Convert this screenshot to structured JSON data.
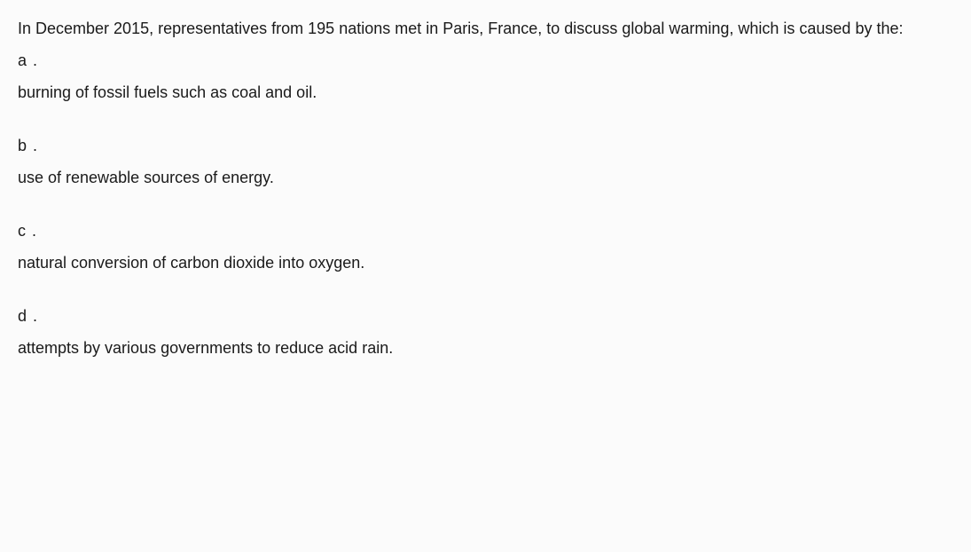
{
  "question": {
    "stem": "In December 2015, representatives from 195 nations met in Paris, France, to discuss global warming, which is caused by the:",
    "options": [
      {
        "label": "a .",
        "text": "burning of fossil fuels such as coal and oil."
      },
      {
        "label": "b .",
        "text": "use of renewable sources of energy."
      },
      {
        "label": "c .",
        "text": "natural conversion of carbon dioxide into oxygen."
      },
      {
        "label": "d .",
        "text": "attempts by various governments to reduce acid rain."
      }
    ]
  },
  "style": {
    "background_color": "#fbfbfb",
    "text_color": "#1a1a1a",
    "font_size_pt": 14,
    "line_height": 2.0,
    "font_family": "system-ui"
  }
}
